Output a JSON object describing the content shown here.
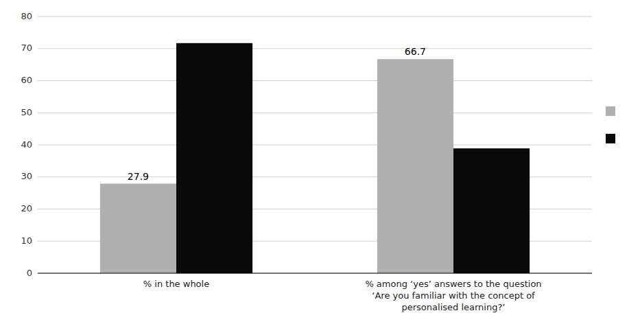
{
  "chart_data": {
    "type": "bar",
    "categories": [
      "% in the whole",
      "% among ‘yes’ answers to the question\n‘Are you familiar with the concept of\npersonalised learning?’"
    ],
    "series": [
      {
        "color": "#b0b0b0",
        "values": [
          27.9,
          66.7
        ],
        "data_labels": true
      },
      {
        "color": "#0a0a0a",
        "values": [
          71.7,
          38.9
        ]
      }
    ],
    "ylim": [
      0,
      80
    ],
    "yticks": [
      0,
      10,
      20,
      30,
      40,
      50,
      60,
      70,
      80
    ],
    "grid": true,
    "legend": "right"
  }
}
